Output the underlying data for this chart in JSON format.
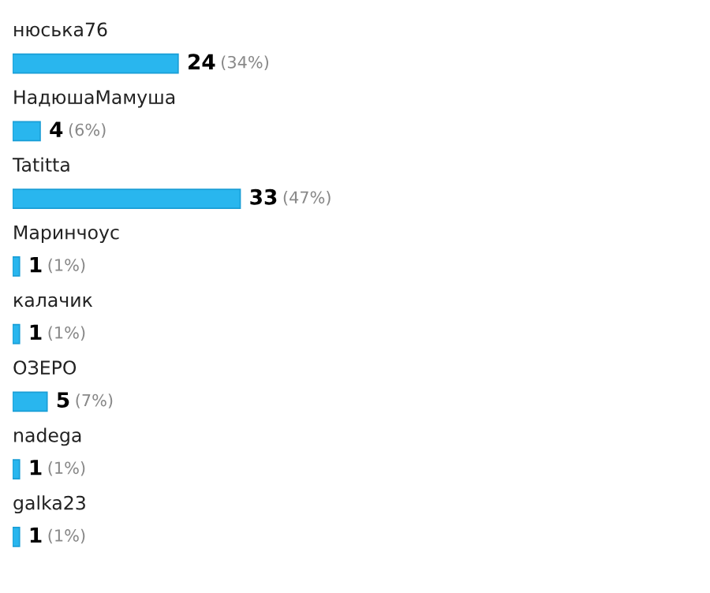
{
  "chart_data": {
    "type": "bar",
    "orientation": "horizontal",
    "categories": [
      "нюська76",
      "НадюшаМамуша",
      "Tatitta",
      "Маринчоус",
      "калачик",
      "ОЗЕРО",
      "nadega",
      "galka23"
    ],
    "values": [
      24,
      4,
      33,
      1,
      1,
      5,
      1,
      1
    ],
    "value_labels": [
      "24 (34%)",
      "4 (6%)",
      "33 (47%)",
      "1 (1%)",
      "1 (1%)",
      "5 (7%)",
      "1 (1%)",
      "1 (1%)"
    ],
    "color": "#29b6ee"
  }
}
